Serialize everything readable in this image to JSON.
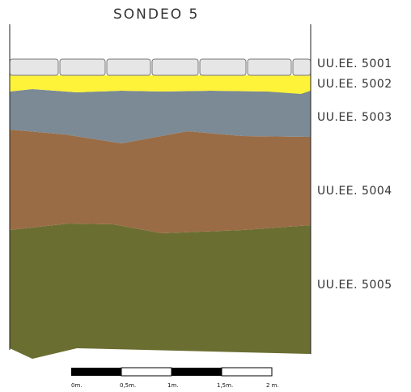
{
  "title": "SONDEO 5",
  "layers": [
    {
      "label": "UU.EE. 5001",
      "color": "#e6e6e6"
    },
    {
      "label": "UU.EE. 5002",
      "color": "#fff33a"
    },
    {
      "label": "UU.EE. 5003",
      "color": "#7b8a95"
    },
    {
      "label": "UU.EE. 5004",
      "color": "#9a6c45"
    },
    {
      "label": "UU.EE. 5005",
      "color": "#6b6e31"
    }
  ],
  "scale_bar": {
    "labels": [
      "0m.",
      "0,5m.",
      "1m.",
      "1,5m.",
      "2 m."
    ]
  }
}
